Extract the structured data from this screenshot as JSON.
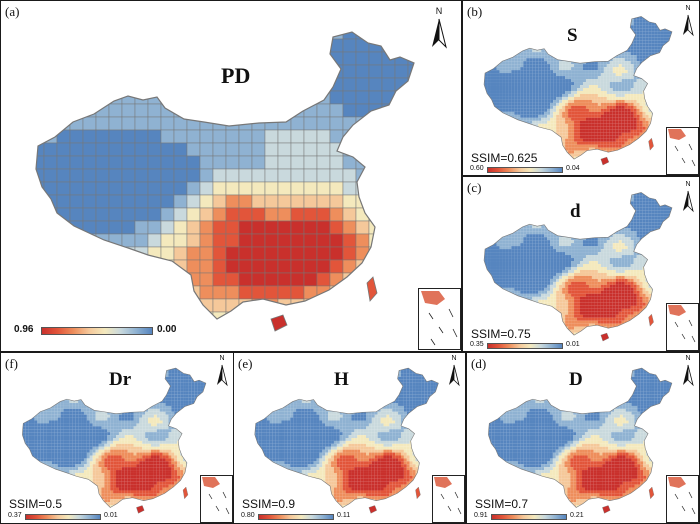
{
  "palette": [
    "#c9302c",
    "#e2553a",
    "#ee8e5c",
    "#f5c89a",
    "#f4e9bd",
    "#c9d9dd",
    "#8fb2d2",
    "#5685bf"
  ],
  "panels": [
    {
      "tag": "(a)",
      "title": "PD",
      "ssim": null,
      "legend_min": "0.96",
      "legend_max": "0.00",
      "mode": "grid",
      "north": "N"
    },
    {
      "tag": "(b)",
      "title": "S",
      "ssim": "SSIM=0.625",
      "legend_min": "0.60",
      "legend_max": "0.04",
      "mode": "smooth",
      "north": "N"
    },
    {
      "tag": "(c)",
      "title": "d",
      "ssim": "SSIM=0.75",
      "legend_min": "0.35",
      "legend_max": "0.01",
      "mode": "smooth",
      "north": "N"
    },
    {
      "tag": "(f)",
      "title": "Dr",
      "ssim": "SSIM=0.5",
      "legend_min": "0.37",
      "legend_max": "0.01",
      "mode": "smooth",
      "north": "N"
    },
    {
      "tag": "(e)",
      "title": "H",
      "ssim": "SSIM=0.9",
      "legend_min": "0.80",
      "legend_max": "0.11",
      "mode": "smooth",
      "north": "N"
    },
    {
      "tag": "(d)",
      "title": "D",
      "ssim": "SSIM=0.7",
      "legend_min": "0.91",
      "legend_max": "0.21",
      "mode": "smooth",
      "north": "N"
    }
  ]
}
